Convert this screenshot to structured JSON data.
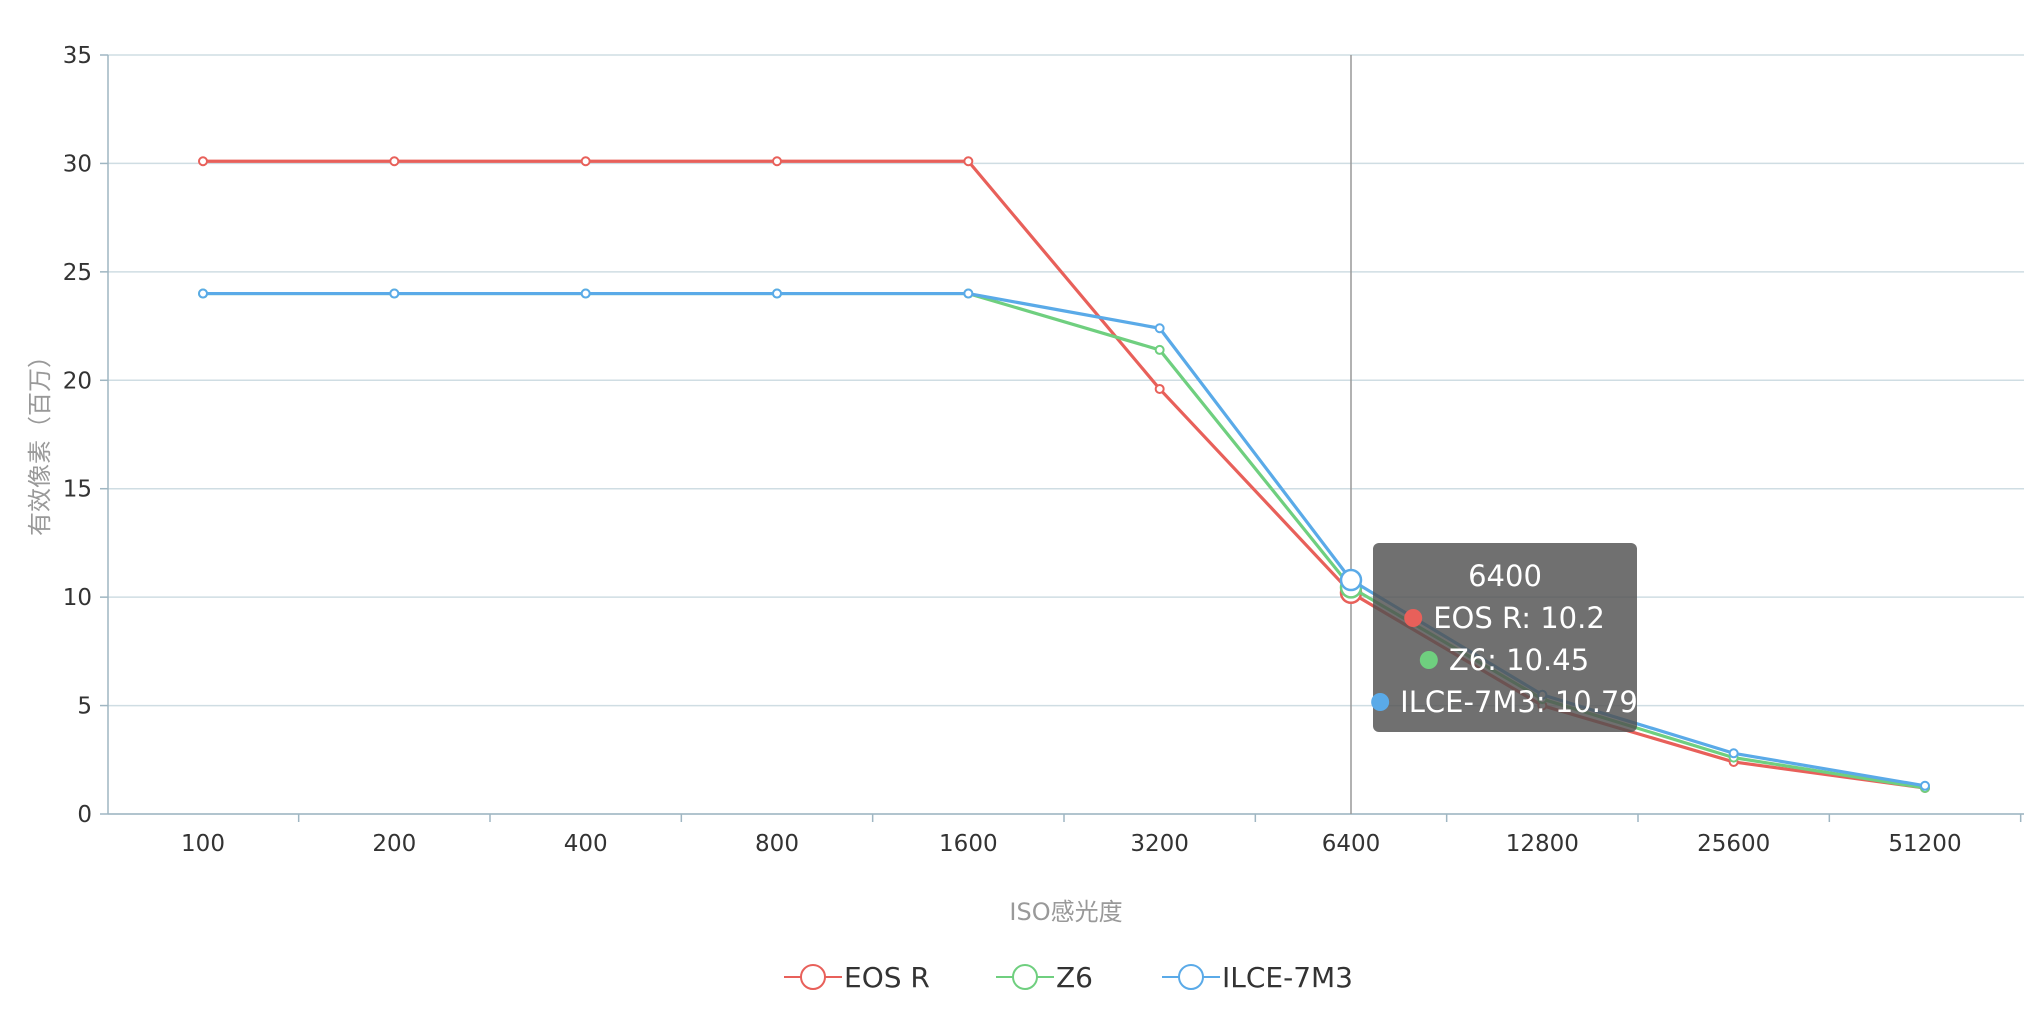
{
  "chart_data": {
    "type": "line",
    "xlabel": "ISO感光度",
    "ylabel": "有效像素（百万）",
    "categories": [
      "100",
      "200",
      "400",
      "800",
      "1600",
      "3200",
      "6400",
      "12800",
      "25600",
      "51200"
    ],
    "ylim": [
      0,
      35
    ],
    "yticks": [
      0,
      5,
      10,
      15,
      20,
      25,
      30,
      35
    ],
    "grid": true,
    "legend_position": "bottom",
    "series": [
      {
        "name": "EOS R",
        "color": "#e8605a",
        "values": [
          30.1,
          30.1,
          30.1,
          30.1,
          30.1,
          19.6,
          10.2,
          5.0,
          2.4,
          1.2
        ]
      },
      {
        "name": "Z6",
        "color": "#6fcf7f",
        "values": [
          24.0,
          24.0,
          24.0,
          24.0,
          24.0,
          21.4,
          10.45,
          5.3,
          2.6,
          1.2
        ]
      },
      {
        "name": "ILCE-7M3",
        "color": "#5aaae8",
        "values": [
          24.0,
          24.0,
          24.0,
          24.0,
          24.0,
          22.4,
          10.79,
          5.5,
          2.8,
          1.3
        ]
      }
    ],
    "tooltip": {
      "category": "6400",
      "lines": [
        "EOS R: 10.2",
        "Z6: 10.45",
        "ILCE-7M3: 10.79"
      ]
    }
  }
}
